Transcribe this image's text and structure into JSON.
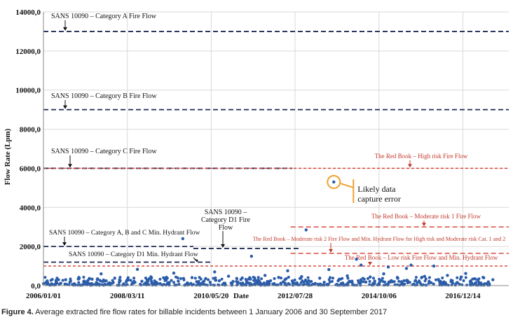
{
  "caption": {
    "label": "Figure 4.",
    "text": "Average extracted fire flow rates for billable incidents between 1 January 2006 and 30 September 2017"
  },
  "chart_data": {
    "type": "scatter",
    "ylabel": "Flow Rate (Lpm)",
    "xlabel": "Date",
    "ylim": [
      0,
      14000
    ],
    "y_ticks": [
      "0,0",
      "2000,0",
      "4000,0",
      "6000,0",
      "8000,0",
      "10000,0",
      "12000,0",
      "14000,0"
    ],
    "x_ticks": [
      {
        "label": "2006/01/01",
        "date": "2006-01-01"
      },
      {
        "label": "2008/03/11",
        "date": "2008-03-11"
      },
      {
        "label": "2010/05/20",
        "date": "2010-05-20"
      },
      {
        "label": "2012/07/28",
        "date": "2012-07-28"
      },
      {
        "label": "2014/10/06",
        "date": "2014-10-06"
      },
      {
        "label": "2016/12/14",
        "date": "2016-12-14"
      }
    ],
    "xlim": [
      "2006-01-01",
      "2018-02-25"
    ],
    "grid": true,
    "point_color": "#2a5caa",
    "reference_lines": [
      {
        "label": "SANS 10090 – Category A Fire Flow",
        "value": 13000,
        "color": "#1f2a55",
        "dash": "long",
        "x_start": "2006-01-01",
        "x_end": "2018-02-25"
      },
      {
        "label": "SANS 10090 – Category B Fire Flow",
        "value": 9000,
        "color": "#1f2a55",
        "dash": "long",
        "x_start": "2006-01-01",
        "x_end": "2018-02-25"
      },
      {
        "label": "SANS 10090 – Category C Fire Flow",
        "value": 6000,
        "color": "#1f2a55",
        "dash": "long",
        "x_start": "2006-01-01",
        "x_end": "2012-07-01"
      },
      {
        "label": "SANS 10090 – Category A, B and C Min. Hydrant Flow",
        "value": 2000,
        "color": "#1f2a55",
        "dash": "long",
        "x_start": "2006-01-01",
        "x_end": "2009-12-01"
      },
      {
        "label": "SANS 10090 – Category D1 Fire Flow",
        "value": 1900,
        "color": "#1f2a55",
        "dash": "long",
        "x_start": "2009-12-01",
        "x_end": "2012-09-01"
      },
      {
        "label": "SANS 10090 – Category D1 Min. Hydrant Flow",
        "value": 1200,
        "color": "#1f2a55",
        "dash": "long",
        "x_start": "2006-01-01",
        "x_end": "2010-06-01"
      },
      {
        "label": "The Red Book – High risk Fire Flow",
        "value": 6000,
        "color": "#d63a2f",
        "dash": "short",
        "x_start": "2006-01-01",
        "x_end": "2018-02-25"
      },
      {
        "label": "The Red Book – Moderate risk 1 Fire Flow",
        "value": 3000,
        "color": "#d63a2f",
        "dash": "long",
        "x_start": "2012-06-15",
        "x_end": "2018-02-25"
      },
      {
        "label": "The Red Book – Moderate risk 2 Fire Flow and Min. Hydrant Flow for High risk and Moderate risk Cat. 1 and 2",
        "value": 1650,
        "color": "#d63a2f",
        "dash": "long",
        "x_start": "2012-06-15",
        "x_end": "2018-02-25"
      },
      {
        "label": "The Red Book – Low risk Fire Flow and Min. Hydrant Flow",
        "value": 1000,
        "color": "#d63a2f",
        "dash": "short",
        "x_start": "2006-01-01",
        "x_end": "2018-02-25"
      }
    ],
    "annotation": {
      "text_line1": "Likely data",
      "text_line2": "capture error",
      "date": "2013-08-01",
      "value": 5300
    },
    "points": [
      {
        "x": "2006-02-10",
        "y": 150
      },
      {
        "x": "2006-03-20",
        "y": 90
      },
      {
        "x": "2006-05-01",
        "y": 260
      },
      {
        "x": "2006-06-15",
        "y": 120
      },
      {
        "x": "2006-08-01",
        "y": 300
      },
      {
        "x": "2006-09-10",
        "y": 180
      },
      {
        "x": "2006-10-25",
        "y": 80
      },
      {
        "x": "2006-12-05",
        "y": 420
      },
      {
        "x": "2007-01-20",
        "y": 210
      },
      {
        "x": "2007-02-28",
        "y": 130
      },
      {
        "x": "2007-04-10",
        "y": 330
      },
      {
        "x": "2007-05-22",
        "y": 160
      },
      {
        "x": "2007-07-05",
        "y": 600
      },
      {
        "x": "2007-08-18",
        "y": 240
      },
      {
        "x": "2007-09-30",
        "y": 110
      },
      {
        "x": "2007-11-12",
        "y": 380
      },
      {
        "x": "2007-12-25",
        "y": 170
      },
      {
        "x": "2008-02-05",
        "y": 90
      },
      {
        "x": "2008-03-20",
        "y": 290
      },
      {
        "x": "2008-05-01",
        "y": 150
      },
      {
        "x": "2008-06-15",
        "y": 830
      },
      {
        "x": "2008-07-28",
        "y": 220
      },
      {
        "x": "2008-09-10",
        "y": 120
      },
      {
        "x": "2008-10-22",
        "y": 450
      },
      {
        "x": "2008-12-05",
        "y": 190
      },
      {
        "x": "2009-01-18",
        "y": 100
      },
      {
        "x": "2009-03-02",
        "y": 350
      },
      {
        "x": "2009-04-15",
        "y": 160
      },
      {
        "x": "2009-05-28",
        "y": 640
      },
      {
        "x": "2009-07-10",
        "y": 230
      },
      {
        "x": "2009-08-22",
        "y": 2400
      },
      {
        "x": "2009-10-05",
        "y": 140
      },
      {
        "x": "2009-11-18",
        "y": 410
      },
      {
        "x": "2010-01-01",
        "y": 200
      },
      {
        "x": "2010-02-12",
        "y": 95
      },
      {
        "x": "2010-03-28",
        "y": 360
      },
      {
        "x": "2010-05-10",
        "y": 170
      },
      {
        "x": "2010-06-22",
        "y": 700
      },
      {
        "x": "2010-08-05",
        "y": 250
      },
      {
        "x": "2010-09-18",
        "y": 120
      },
      {
        "x": "2010-11-01",
        "y": 480
      },
      {
        "x": "2010-12-14",
        "y": 210
      },
      {
        "x": "2011-01-28",
        "y": 110
      },
      {
        "x": "2011-03-12",
        "y": 390
      },
      {
        "x": "2011-04-25",
        "y": 180
      },
      {
        "x": "2011-06-08",
        "y": 1500
      },
      {
        "x": "2011-07-20",
        "y": 260
      },
      {
        "x": "2011-09-02",
        "y": 130
      },
      {
        "x": "2011-10-15",
        "y": 520
      },
      {
        "x": "2011-11-28",
        "y": 220
      },
      {
        "x": "2012-01-10",
        "y": 100
      },
      {
        "x": "2012-02-22",
        "y": 420
      },
      {
        "x": "2012-04-05",
        "y": 190
      },
      {
        "x": "2012-05-18",
        "y": 760
      },
      {
        "x": "2012-07-01",
        "y": 240
      },
      {
        "x": "2012-08-15",
        "y": 140
      },
      {
        "x": "2012-09-28",
        "y": 460
      },
      {
        "x": "2012-11-10",
        "y": 2850
      },
      {
        "x": "2012-12-22",
        "y": 200
      },
      {
        "x": "2013-02-05",
        "y": 110
      },
      {
        "x": "2013-03-20",
        "y": 380
      },
      {
        "x": "2013-05-02",
        "y": 170
      },
      {
        "x": "2013-06-15",
        "y": 820
      },
      {
        "x": "2013-08-01",
        "y": 5300
      },
      {
        "x": "2013-09-12",
        "y": 250
      },
      {
        "x": "2013-10-25",
        "y": 130
      },
      {
        "x": "2013-12-08",
        "y": 500
      },
      {
        "x": "2014-01-20",
        "y": 210
      },
      {
        "x": "2014-03-05",
        "y": 1350
      },
      {
        "x": "2014-04-18",
        "y": 1050
      },
      {
        "x": "2014-06-01",
        "y": 180
      },
      {
        "x": "2014-07-14",
        "y": 440
      },
      {
        "x": "2014-08-26",
        "y": 230
      },
      {
        "x": "2014-10-08",
        "y": 120
      },
      {
        "x": "2014-11-20",
        "y": 600
      },
      {
        "x": "2015-01-03",
        "y": 950
      },
      {
        "x": "2015-02-15",
        "y": 200
      },
      {
        "x": "2015-03-30",
        "y": 420
      },
      {
        "x": "2015-05-12",
        "y": 160
      },
      {
        "x": "2015-06-25",
        "y": 880
      },
      {
        "x": "2015-08-08",
        "y": 1050
      },
      {
        "x": "2015-09-20",
        "y": 260
      },
      {
        "x": "2015-11-02",
        "y": 140
      },
      {
        "x": "2015-12-15",
        "y": 470
      },
      {
        "x": "2016-01-28",
        "y": 220
      },
      {
        "x": "2016-03-12",
        "y": 1000
      },
      {
        "x": "2016-04-25",
        "y": 310
      },
      {
        "x": "2016-06-08",
        "y": 160
      },
      {
        "x": "2016-07-20",
        "y": 520
      },
      {
        "x": "2016-09-02",
        "y": 240
      },
      {
        "x": "2016-10-15",
        "y": 130
      },
      {
        "x": "2016-11-28",
        "y": 440
      },
      {
        "x": "2017-01-10",
        "y": 620
      },
      {
        "x": "2017-02-22",
        "y": 210
      },
      {
        "x": "2017-04-05",
        "y": 350
      },
      {
        "x": "2017-05-18",
        "y": 160
      },
      {
        "x": "2017-07-01",
        "y": 400
      },
      {
        "x": "2017-08-14",
        "y": 190
      },
      {
        "x": "2017-09-26",
        "y": 300
      }
    ]
  }
}
